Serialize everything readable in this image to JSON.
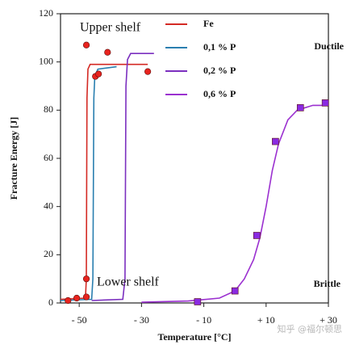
{
  "chart_data": {
    "type": "line",
    "x_label": "Temperature [°C]",
    "y_label": "Fracture Energy [J]",
    "xlim": [
      -56,
      30
    ],
    "ylim": [
      0,
      120
    ],
    "xticks": [
      {
        "value": -50,
        "label": "- 50"
      },
      {
        "value": -30,
        "label": "- 30"
      },
      {
        "value": -10,
        "label": "- 10"
      },
      {
        "value": 10,
        "label": "+ 10"
      },
      {
        "value": 30,
        "label": "+ 30"
      }
    ],
    "yticks": [
      0,
      20,
      40,
      60,
      80,
      100,
      120
    ],
    "grid": false,
    "legend": "upper center",
    "series": [
      {
        "name": "Fe",
        "color": "#d42a24",
        "x": [
          -56,
          -48,
          -47.7,
          -47.5,
          -47.2,
          -46.5,
          -28
        ],
        "values": [
          1.5,
          2,
          10,
          85,
          97,
          99,
          99
        ]
      },
      {
        "name": "0,1 % P",
        "color": "#2a7fb0",
        "x": [
          -56,
          -46,
          -45.6,
          -45.3,
          -45,
          -44,
          -38
        ],
        "values": [
          1,
          1.5,
          10,
          85,
          94,
          97,
          98
        ]
      },
      {
        "name": "0,2 % P",
        "color": "#7b2fbf",
        "x": [
          -46,
          -36,
          -35.3,
          -35,
          -34.5,
          -33.5,
          -26
        ],
        "values": [
          1,
          1.5,
          10,
          90,
          101,
          103.5,
          103.5
        ]
      },
      {
        "name": "0,6 % P",
        "color": "#9b30d0",
        "x": [
          -30,
          -15,
          -5,
          0,
          3,
          6,
          8,
          10,
          12,
          14,
          17,
          20,
          25,
          30
        ],
        "values": [
          0.3,
          0.8,
          2,
          5,
          10,
          18,
          27,
          40,
          55,
          66,
          76,
          80,
          82,
          82
        ]
      }
    ],
    "markers": [
      {
        "shape": "circle",
        "color": "#e8231e",
        "x": [
          -53.6,
          -50.8,
          -47.7,
          -47.7,
          -47.7,
          -44.8,
          -43.8,
          -40.9,
          -28
        ],
        "values": [
          1,
          2,
          2.5,
          10,
          107,
          94,
          95,
          104,
          96
        ]
      },
      {
        "shape": "square",
        "color": "#8a2be2",
        "x": [
          -12,
          0,
          7,
          13,
          21,
          29
        ],
        "values": [
          0.5,
          5,
          28,
          67,
          81,
          83
        ]
      }
    ],
    "annotations": [
      "Upper shelf",
      "Lower shelf",
      "Ductile",
      "Brittle"
    ],
    "watermark": "知乎 @福尔顿思"
  }
}
